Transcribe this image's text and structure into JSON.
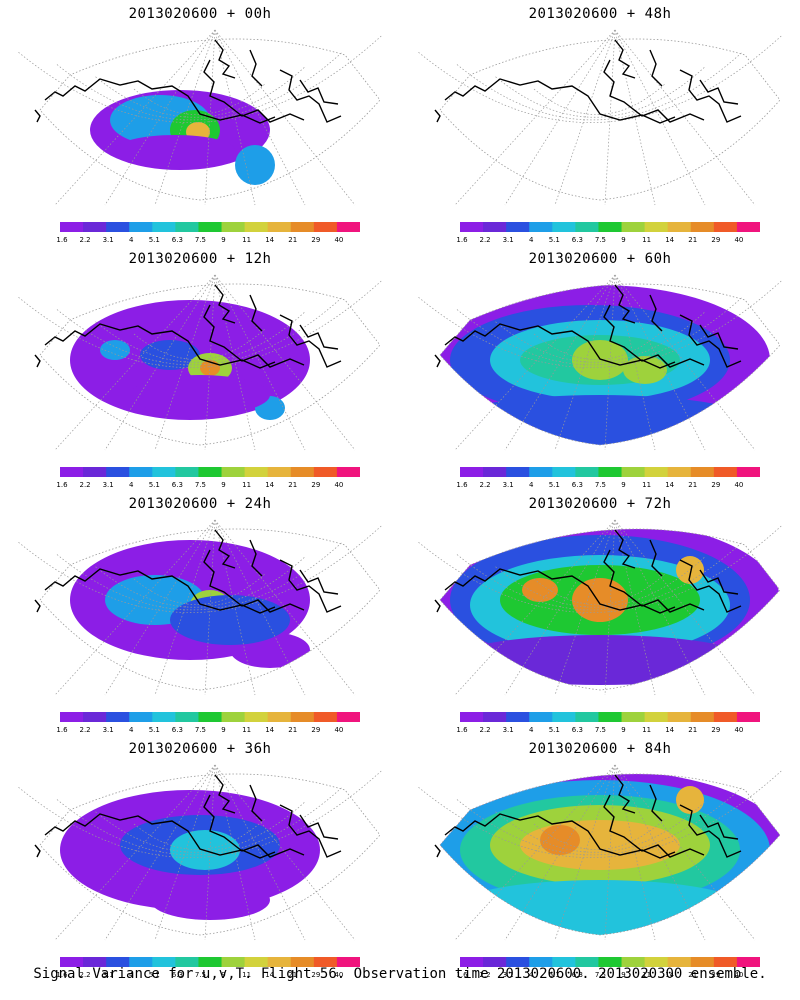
{
  "panels": [
    {
      "title": "2013020600 + 00h"
    },
    {
      "title": "2013020600 + 48h"
    },
    {
      "title": "2013020600 + 12h"
    },
    {
      "title": "2013020600 + 60h"
    },
    {
      "title": "2013020600 + 24h"
    },
    {
      "title": "2013020600 + 72h"
    },
    {
      "title": "2013020600 + 36h"
    },
    {
      "title": "2013020600 + 84h"
    }
  ],
  "colorbar": {
    "labels": [
      "1.6",
      "2.2",
      "3.1",
      "4",
      "5.1",
      "6.3",
      "7.5",
      "9",
      "11",
      "14",
      "21",
      "29",
      "40"
    ],
    "colors": [
      "#8c1ee6",
      "#6a28d8",
      "#2a50e0",
      "#1e9ee8",
      "#22c3dc",
      "#22c8a0",
      "#1ec832",
      "#9ed23c",
      "#d2d23c",
      "#e6b43c",
      "#e68c28",
      "#f05a28",
      "#f0147d"
    ]
  },
  "map_colors": {
    "land_outline": "#000000",
    "graticule": "#999999",
    "background": "#ffffff"
  },
  "caption": "Signal Variance for u,v,T. Flight 56. Observation time 2013020600. 2013020300 ensemble."
}
